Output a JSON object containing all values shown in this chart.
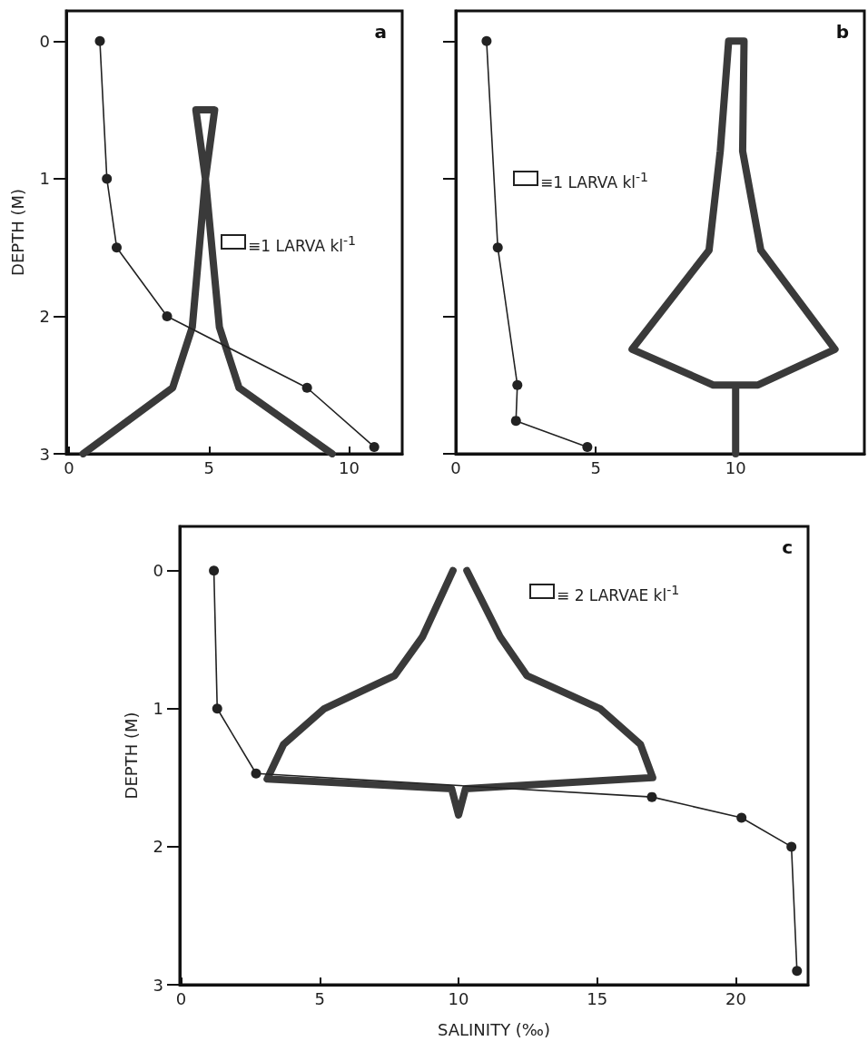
{
  "chart_data": [
    {
      "type": "line",
      "title": "a",
      "ylabel": "DEPTH (M)",
      "xlim": [
        -0.1,
        11.9
      ],
      "ylim": [
        3,
        -0.22
      ],
      "xticks": [
        0,
        5,
        10
      ],
      "yticks": [
        0,
        1,
        2,
        3
      ],
      "annotations": [
        "≡1 LARVA kl$^{-1}$"
      ],
      "series": [
        {
          "color": "#3a3a3a",
          "marker": "none",
          "x": [
            0.5,
            3.7,
            4.4,
            4.87,
            5.2,
            4.53,
            4.87,
            5.37,
            6.07,
            9.4
          ],
          "values": [
            3,
            2.52,
            2.08,
            1.0,
            0.5,
            0.5,
            1.0,
            2.08,
            2.52,
            3
          ]
        },
        {
          "color": "#222222",
          "marker": "circle",
          "x": [
            1.1,
            1.35,
            1.7,
            3.5,
            8.5,
            10.9
          ],
          "values": [
            0,
            1,
            1.5,
            2,
            2.52,
            2.95
          ]
        }
      ]
    },
    {
      "type": "line",
      "title": "b",
      "tick_labels": "x",
      "xlim": [
        0,
        14.6
      ],
      "ylim": [
        3,
        -0.22
      ],
      "xticks": [
        0,
        5,
        10
      ],
      "yticks": [
        0,
        1,
        2,
        3
      ],
      "annotations": [
        "≡1 LARVA kl$^{-1}$"
      ],
      "series": [
        {
          "color": "#3a3a3a",
          "marker": "none",
          "x": [
            10,
            10,
            9.2,
            6.3,
            9.05,
            9.45,
            9.75,
            10.3,
            10.25,
            10.9,
            13.55,
            10.8,
            10
          ],
          "values": [
            3,
            2.5,
            2.5,
            2.24,
            1.52,
            0.8,
            0,
            0,
            0.8,
            1.52,
            2.24,
            2.5,
            2.5
          ]
        },
        {
          "color": "#222222",
          "marker": "circle",
          "x": [
            1.1,
            1.5,
            2.2,
            2.15,
            4.7
          ],
          "values": [
            0,
            1.5,
            2.5,
            2.76,
            2.95
          ]
        }
      ]
    },
    {
      "type": "line",
      "title": "c",
      "xlabel": "SALINITY (‰)",
      "ylabel": "DEPTH (M)",
      "xlim": [
        -0.05,
        22.6
      ],
      "ylim": [
        3,
        -0.32
      ],
      "xticks": [
        0,
        5,
        10,
        15,
        20
      ],
      "yticks": [
        0,
        1,
        2,
        3
      ],
      "annotations": [
        "≡ 2 LARVAE kl$^{-1}$"
      ],
      "series": [
        {
          "color": "#3a3a3a",
          "marker": "none",
          "x": [
            9.8,
            8.7,
            7.7,
            5.16,
            3.69,
            3.1,
            9.75,
            10.0,
            10.25,
            17.0,
            16.56,
            15.1,
            12.46,
            11.5,
            10.3
          ],
          "values": [
            0,
            0.48,
            0.76,
            1.0,
            1.26,
            1.51,
            1.58,
            1.77,
            1.58,
            1.5,
            1.26,
            1.0,
            0.76,
            0.48,
            0
          ]
        },
        {
          "color": "#222222",
          "marker": "circle",
          "x": [
            1.18,
            1.3,
            2.7,
            16.97,
            20.2,
            22.0,
            22.2
          ],
          "values": [
            0,
            1,
            1.47,
            1.64,
            1.79,
            2.0,
            2.9
          ]
        }
      ]
    }
  ]
}
